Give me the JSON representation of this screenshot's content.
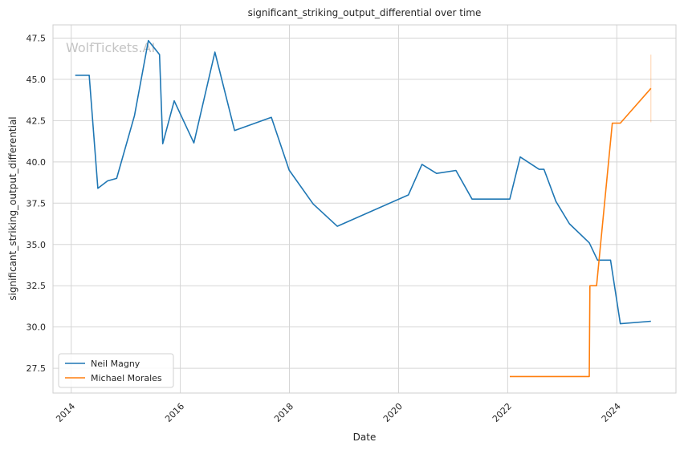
{
  "chart_data": {
    "type": "line",
    "title": "significant_striking_output_differential over time",
    "xlabel": "Date",
    "ylabel": "significant_striking_output_differential",
    "xlim": [
      "2013-09-01",
      "2025-02-01"
    ],
    "ylim": [
      26.0,
      48.3
    ],
    "x_ticks": [
      "2014",
      "2016",
      "2018",
      "2020",
      "2022",
      "2024"
    ],
    "y_ticks": [
      "27.5",
      "30.0",
      "32.5",
      "35.0",
      "37.5",
      "40.0",
      "42.5",
      "45.0",
      "47.5"
    ],
    "grid": true,
    "legend_position": "lower-left",
    "watermark": "WolfTickets.AI",
    "series": [
      {
        "name": "Neil Magny",
        "color": "#1f77b4",
        "points": [
          [
            "2014-01-28",
            45.25
          ],
          [
            "2014-05-01",
            45.25
          ],
          [
            "2014-06-28",
            38.4
          ],
          [
            "2014-09-01",
            38.85
          ],
          [
            "2014-11-01",
            39.0
          ],
          [
            "2015-02-28",
            42.8
          ],
          [
            "2015-06-01",
            47.35
          ],
          [
            "2015-08-15",
            46.5
          ],
          [
            "2015-09-05",
            41.1
          ],
          [
            "2015-11-21",
            43.7
          ],
          [
            "2016-04-01",
            41.15
          ],
          [
            "2016-08-20",
            46.65
          ],
          [
            "2016-12-30",
            41.9
          ],
          [
            "2017-09-02",
            42.7
          ],
          [
            "2017-12-30",
            39.5
          ],
          [
            "2018-06-09",
            37.45
          ],
          [
            "2018-11-17",
            36.1
          ],
          [
            "2020-03-07",
            38.0
          ],
          [
            "2020-06-06",
            39.85
          ],
          [
            "2020-09-12",
            39.3
          ],
          [
            "2021-01-20",
            39.48
          ],
          [
            "2021-05-08",
            37.75
          ],
          [
            "2022-01-15",
            37.75
          ],
          [
            "2022-03-26",
            40.3
          ],
          [
            "2022-07-30",
            39.55
          ],
          [
            "2022-09-01",
            39.55
          ],
          [
            "2022-11-20",
            37.6
          ],
          [
            "2023-02-18",
            36.25
          ],
          [
            "2023-07-01",
            35.1
          ],
          [
            "2023-08-25",
            34.05
          ],
          [
            "2023-11-20",
            34.05
          ],
          [
            "2024-01-25",
            30.2
          ],
          [
            "2024-08-17",
            30.35
          ]
        ]
      },
      {
        "name": "Michael Morales",
        "color": "#ff7f0e",
        "points": [
          [
            "2022-01-15",
            27.0
          ],
          [
            "2023-07-01",
            27.0
          ],
          [
            "2023-07-05",
            32.5
          ],
          [
            "2023-08-19",
            32.5
          ],
          [
            "2023-12-02",
            42.35
          ],
          [
            "2024-01-25",
            42.35
          ],
          [
            "2024-08-17",
            44.45
          ]
        ],
        "error_band": {
          "x": "2024-08-17",
          "low": 42.4,
          "high": 46.5
        }
      }
    ]
  }
}
